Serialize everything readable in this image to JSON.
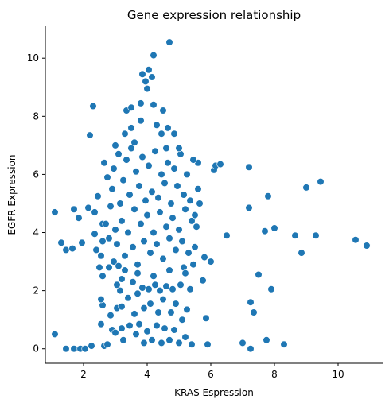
{
  "chart_data": {
    "type": "scatter",
    "title": "Gene expression relationship",
    "xlabel": "KRAS Espression",
    "ylabel": "EGFR Expression",
    "xlim": [
      0.8,
      11.4
    ],
    "ylim": [
      -0.5,
      11.1
    ],
    "xticks": [
      2,
      4,
      6,
      8,
      10
    ],
    "yticks": [
      0,
      2,
      4,
      6,
      8,
      10
    ],
    "grid": false,
    "color": "#1f77b4",
    "series": [
      {
        "points": [
          [
            1.1,
            0.5
          ],
          [
            1.1,
            4.7
          ],
          [
            1.3,
            3.65
          ],
          [
            1.45,
            3.4
          ],
          [
            1.45,
            0.0
          ],
          [
            1.65,
            3.45
          ],
          [
            1.7,
            4.8
          ],
          [
            1.7,
            0.0
          ],
          [
            1.85,
            4.5
          ],
          [
            1.9,
            0.0
          ],
          [
            1.95,
            3.65
          ],
          [
            2.05,
            0.0
          ],
          [
            2.15,
            4.85
          ],
          [
            2.2,
            7.35
          ],
          [
            2.3,
            8.35
          ],
          [
            2.25,
            0.1
          ],
          [
            2.35,
            4.7
          ],
          [
            2.35,
            3.95
          ],
          [
            2.4,
            3.4
          ],
          [
            2.45,
            5.25
          ],
          [
            2.5,
            2.8
          ],
          [
            2.55,
            3.2
          ],
          [
            2.55,
            0.85
          ],
          [
            2.6,
            1.5
          ],
          [
            2.55,
            1.7
          ],
          [
            2.6,
            2.5
          ],
          [
            2.6,
            4.3
          ],
          [
            2.65,
            0.1
          ],
          [
            2.75,
            0.15
          ],
          [
            2.8,
            2.8
          ],
          [
            2.85,
            1.15
          ],
          [
            2.9,
            0.65
          ],
          [
            2.95,
            3.0
          ],
          [
            3.0,
            0.55
          ],
          [
            3.05,
            2.2
          ],
          [
            3.05,
            1.4
          ],
          [
            3.1,
            2.85
          ],
          [
            3.15,
            2.0
          ],
          [
            3.2,
            0.7
          ],
          [
            3.2,
            1.45
          ],
          [
            3.25,
            0.3
          ],
          [
            3.3,
            2.7
          ],
          [
            3.3,
            7.4
          ],
          [
            3.35,
            8.2
          ],
          [
            3.4,
            1.75
          ],
          [
            3.45,
            0.8
          ],
          [
            3.5,
            7.6
          ],
          [
            3.5,
            8.3
          ],
          [
            3.55,
            2.3
          ],
          [
            3.6,
            1.2
          ],
          [
            3.65,
            0.5
          ],
          [
            3.7,
            1.9
          ],
          [
            3.75,
            0.85
          ],
          [
            3.8,
            8.45
          ],
          [
            3.8,
            7.85
          ],
          [
            3.85,
            2.1
          ],
          [
            3.9,
            1.4
          ],
          [
            3.9,
            0.2
          ],
          [
            3.85,
            9.45
          ],
          [
            3.95,
            9.2
          ],
          [
            4.0,
            0.6
          ],
          [
            4.0,
            8.95
          ],
          [
            4.05,
            9.6
          ],
          [
            4.05,
            2.05
          ],
          [
            4.1,
            1.55
          ],
          [
            4.15,
            0.3
          ],
          [
            4.15,
            9.35
          ],
          [
            4.2,
            10.1
          ],
          [
            4.2,
            8.4
          ],
          [
            4.25,
            2.2
          ],
          [
            4.3,
            0.8
          ],
          [
            4.3,
            7.7
          ],
          [
            4.35,
            1.25
          ],
          [
            4.4,
            2.0
          ],
          [
            4.45,
            0.2
          ],
          [
            4.45,
            7.4
          ],
          [
            4.5,
            8.2
          ],
          [
            4.5,
            1.7
          ],
          [
            4.55,
            0.7
          ],
          [
            4.6,
            2.15
          ],
          [
            4.65,
            7.6
          ],
          [
            4.7,
            10.55
          ],
          [
            4.7,
            0.3
          ],
          [
            4.75,
            1.25
          ],
          [
            4.8,
            2.05
          ],
          [
            4.85,
            7.4
          ],
          [
            4.85,
            0.65
          ],
          [
            4.9,
            1.55
          ],
          [
            5.0,
            0.2
          ],
          [
            5.05,
            2.2
          ],
          [
            5.1,
            1.0
          ],
          [
            5.15,
            2.8
          ],
          [
            5.2,
            0.4
          ],
          [
            5.25,
            1.35
          ],
          [
            5.35,
            2.05
          ],
          [
            5.4,
            0.15
          ],
          [
            5.5,
            4.6
          ],
          [
            5.55,
            4.2
          ],
          [
            5.6,
            6.4
          ],
          [
            5.65,
            5.0
          ],
          [
            5.75,
            2.35
          ],
          [
            5.8,
            3.15
          ],
          [
            5.85,
            1.05
          ],
          [
            5.9,
            0.15
          ],
          [
            6.0,
            3.0
          ],
          [
            6.1,
            6.15
          ],
          [
            6.15,
            6.3
          ],
          [
            6.3,
            6.35
          ],
          [
            6.5,
            3.9
          ],
          [
            7.0,
            0.2
          ],
          [
            7.2,
            6.25
          ],
          [
            7.2,
            4.85
          ],
          [
            7.25,
            1.6
          ],
          [
            7.25,
            0.0
          ],
          [
            7.35,
            1.25
          ],
          [
            7.5,
            2.55
          ],
          [
            7.7,
            4.05
          ],
          [
            7.75,
            0.3
          ],
          [
            7.8,
            5.25
          ],
          [
            7.9,
            2.05
          ],
          [
            8.0,
            4.15
          ],
          [
            8.3,
            0.15
          ],
          [
            8.65,
            3.9
          ],
          [
            8.85,
            3.3
          ],
          [
            9.0,
            5.55
          ],
          [
            9.3,
            3.9
          ],
          [
            9.45,
            5.75
          ],
          [
            10.55,
            3.75
          ],
          [
            10.9,
            3.55
          ],
          [
            2.85,
            4.9
          ],
          [
            2.9,
            5.5
          ],
          [
            2.95,
            6.2
          ],
          [
            3.0,
            4.1
          ],
          [
            3.05,
            3.6
          ],
          [
            3.1,
            6.7
          ],
          [
            3.15,
            5.0
          ],
          [
            3.2,
            4.4
          ],
          [
            3.25,
            5.8
          ],
          [
            3.3,
            3.2
          ],
          [
            3.35,
            6.5
          ],
          [
            3.4,
            4.0
          ],
          [
            3.45,
            5.3
          ],
          [
            3.5,
            6.9
          ],
          [
            3.55,
            3.5
          ],
          [
            3.6,
            4.8
          ],
          [
            3.65,
            6.1
          ],
          [
            3.7,
            2.9
          ],
          [
            3.75,
            5.6
          ],
          [
            3.8,
            4.3
          ],
          [
            3.85,
            6.6
          ],
          [
            3.9,
            3.7
          ],
          [
            3.95,
            5.1
          ],
          [
            4.0,
            4.6
          ],
          [
            4.05,
            6.3
          ],
          [
            4.1,
            3.3
          ],
          [
            4.15,
            5.4
          ],
          [
            4.2,
            4.0
          ],
          [
            4.25,
            6.8
          ],
          [
            4.3,
            3.6
          ],
          [
            4.35,
            5.2
          ],
          [
            4.4,
            4.7
          ],
          [
            4.45,
            6.0
          ],
          [
            4.5,
            3.1
          ],
          [
            4.55,
            5.7
          ],
          [
            4.6,
            4.2
          ],
          [
            4.65,
            6.4
          ],
          [
            4.7,
            3.8
          ],
          [
            4.75,
            5.0
          ],
          [
            4.8,
            4.5
          ],
          [
            4.85,
            6.2
          ],
          [
            4.9,
            3.4
          ],
          [
            4.95,
            5.6
          ],
          [
            5.0,
            4.1
          ],
          [
            5.05,
            6.7
          ],
          [
            5.1,
            3.7
          ],
          [
            5.15,
            5.3
          ],
          [
            5.2,
            4.8
          ],
          [
            5.25,
            6.0
          ],
          [
            5.3,
            3.3
          ],
          [
            5.35,
            5.1
          ],
          [
            5.4,
            4.4
          ],
          [
            5.45,
            6.5
          ],
          [
            2.7,
            4.3
          ],
          [
            2.75,
            5.9
          ],
          [
            2.8,
            3.8
          ],
          [
            3.0,
            7.0
          ],
          [
            3.6,
            7.1
          ],
          [
            4.6,
            6.9
          ],
          [
            5.0,
            6.9
          ],
          [
            3.2,
            2.4
          ],
          [
            3.7,
            2.6
          ],
          [
            4.2,
            2.5
          ],
          [
            4.7,
            2.7
          ],
          [
            5.2,
            2.6
          ],
          [
            2.6,
            3.7
          ],
          [
            5.5,
            3.5
          ],
          [
            5.6,
            5.5
          ],
          [
            2.65,
            6.4
          ],
          [
            5.45,
            2.9
          ]
        ]
      }
    ]
  }
}
